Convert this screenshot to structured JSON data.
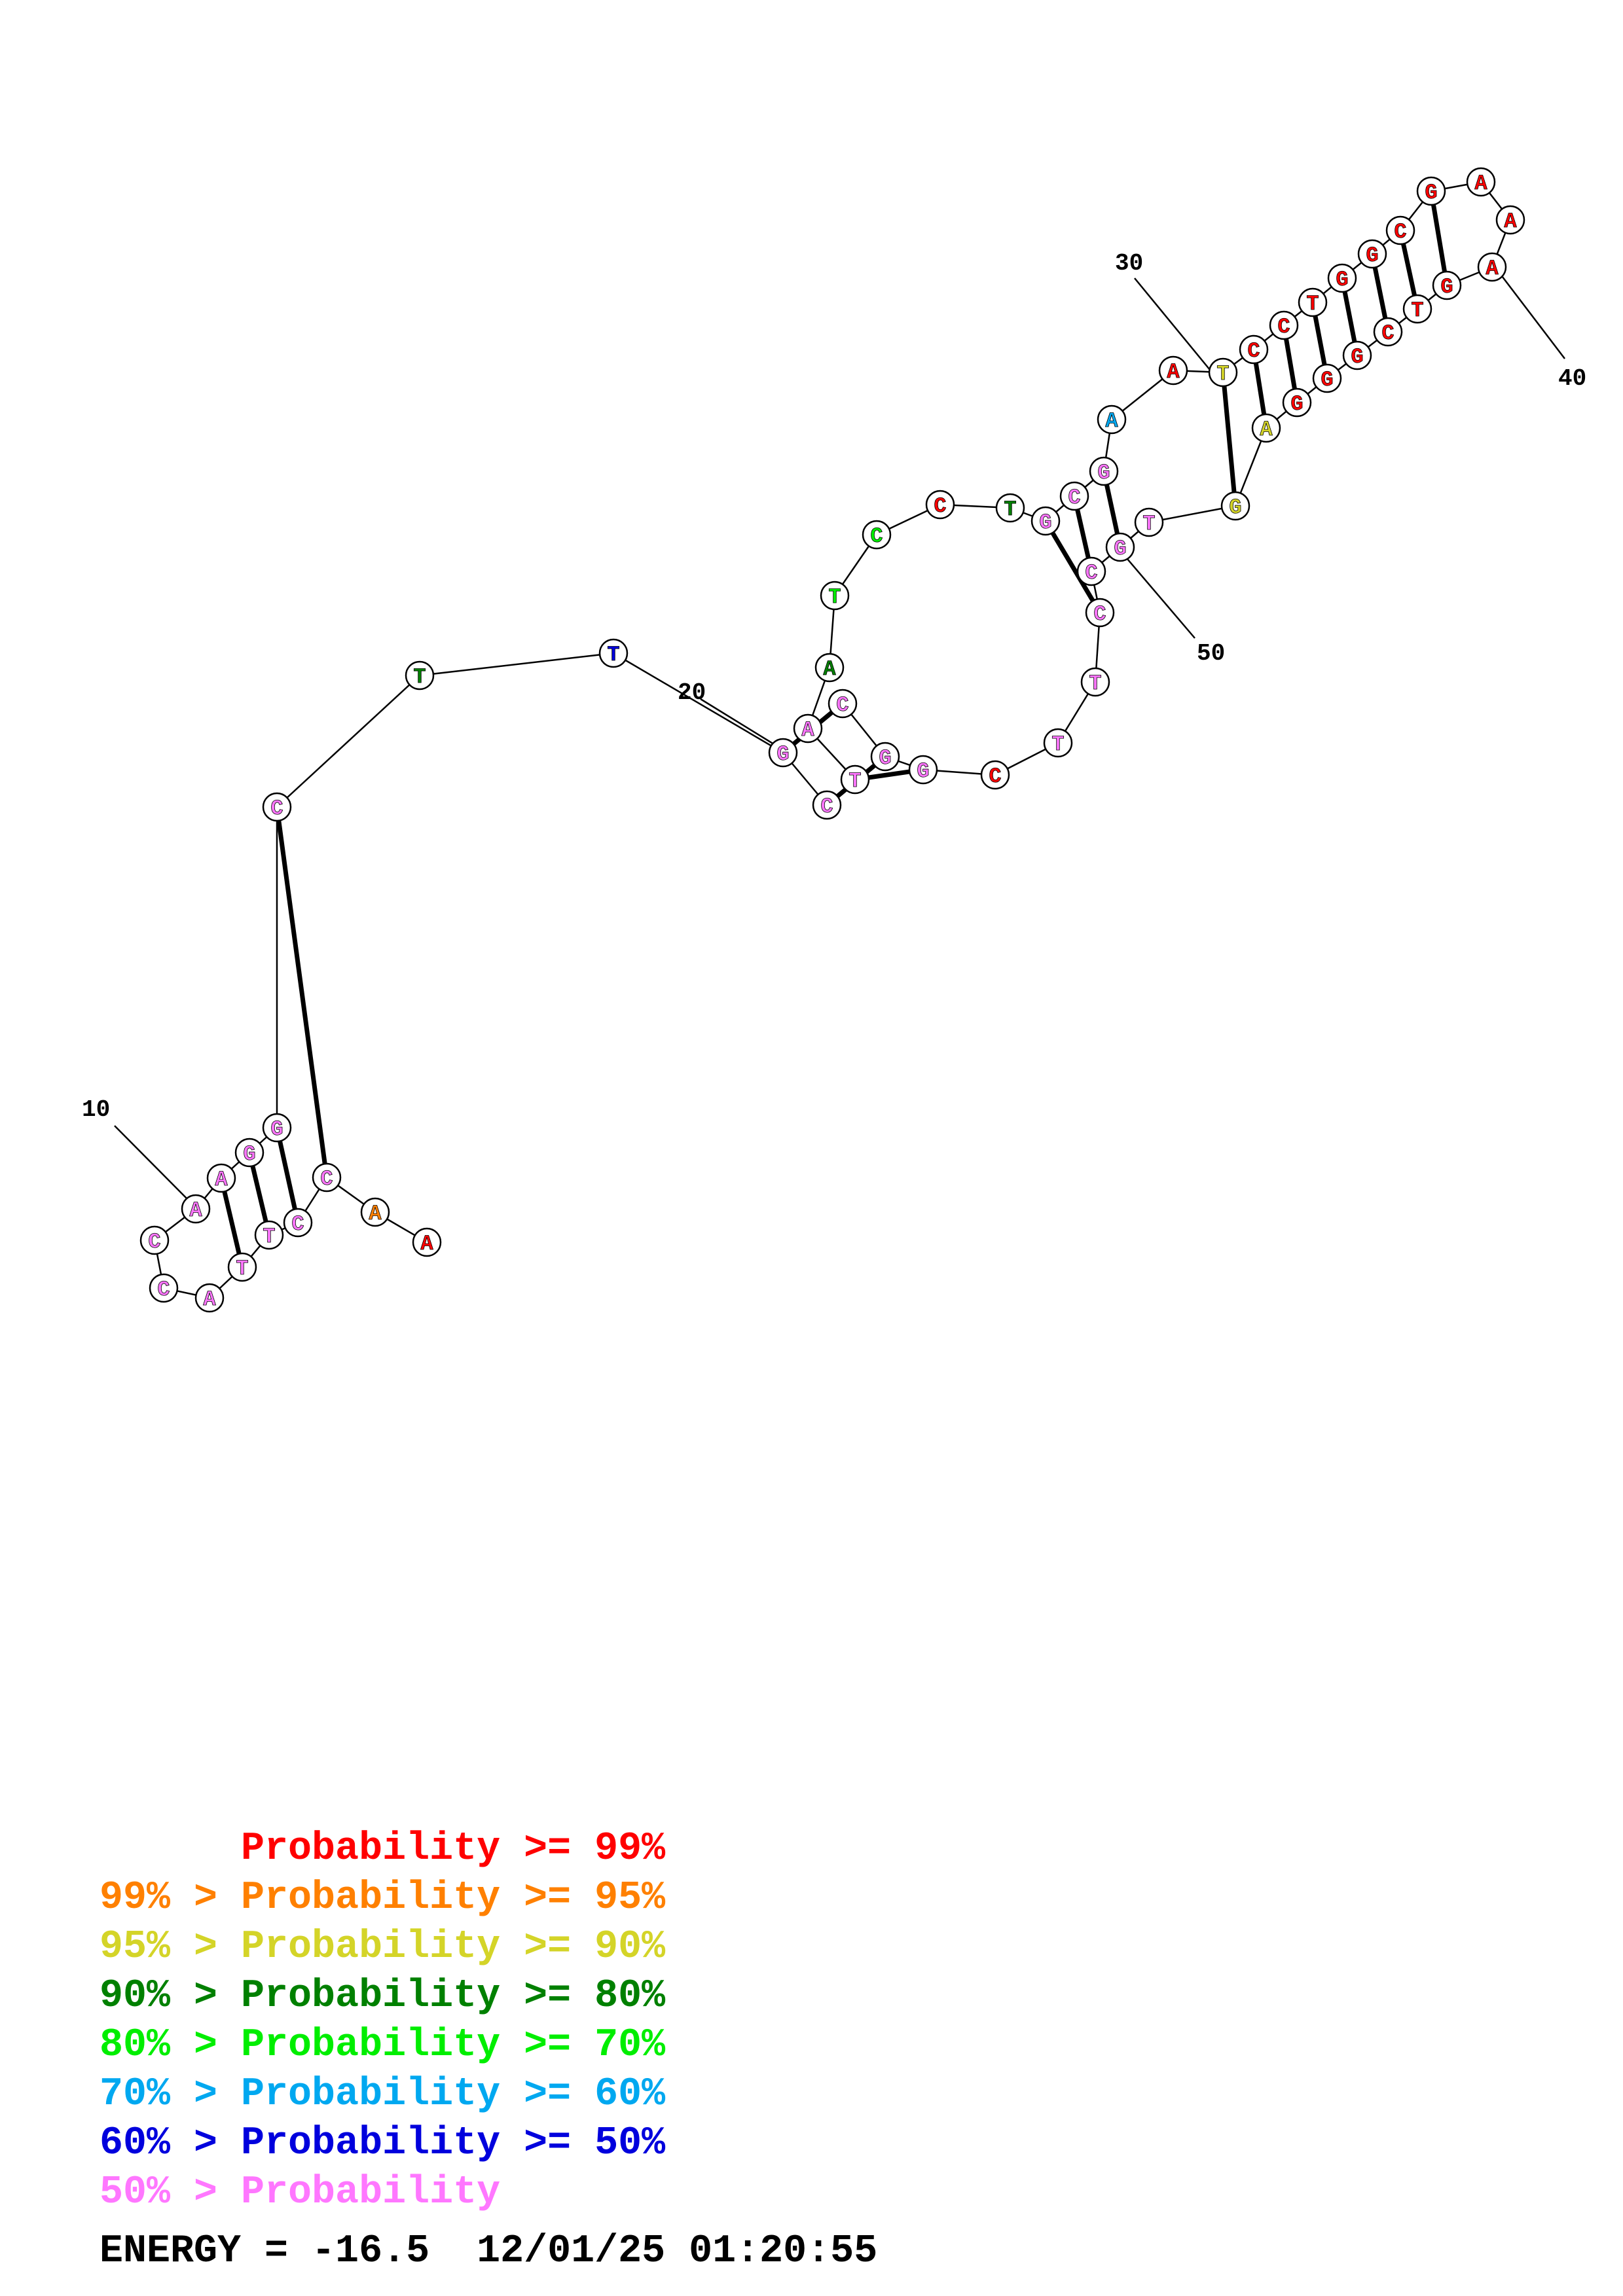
{
  "colors": {
    "red": "#ff0000",
    "orange": "#ff8000",
    "yellow": "#d4d428",
    "darkgreen": "#008000",
    "green": "#00ee00",
    "cyan": "#00a8f0",
    "blue": "#0000dd",
    "pink": "#ff77ff"
  },
  "nucleotides": [
    {
      "base": "A",
      "color": "red"
    },
    {
      "base": "A",
      "color": "orange"
    },
    {
      "base": "C",
      "color": "pink"
    },
    {
      "base": "C",
      "color": "pink"
    },
    {
      "base": "T",
      "color": "pink"
    },
    {
      "base": "T",
      "color": "pink"
    },
    {
      "base": "A",
      "color": "pink"
    },
    {
      "base": "C",
      "color": "pink"
    },
    {
      "base": "C",
      "color": "pink"
    },
    {
      "base": "A",
      "color": "pink"
    },
    {
      "base": "A",
      "color": "pink"
    },
    {
      "base": "G",
      "color": "pink"
    },
    {
      "base": "G",
      "color": "pink"
    },
    {
      "base": "C",
      "color": "pink"
    },
    {
      "base": "T",
      "color": "darkgreen"
    },
    {
      "base": "T",
      "color": "blue"
    },
    {
      "base": "G",
      "color": "pink"
    },
    {
      "base": "C",
      "color": "pink"
    },
    {
      "base": "T",
      "color": "pink"
    },
    {
      "base": "A",
      "color": "pink"
    },
    {
      "base": "A",
      "color": "darkgreen"
    },
    {
      "base": "T",
      "color": "green"
    },
    {
      "base": "C",
      "color": "green"
    },
    {
      "base": "C",
      "color": "red"
    },
    {
      "base": "T",
      "color": "darkgreen"
    },
    {
      "base": "G",
      "color": "pink"
    },
    {
      "base": "C",
      "color": "pink"
    },
    {
      "base": "G",
      "color": "pink"
    },
    {
      "base": "A",
      "color": "cyan"
    },
    {
      "base": "A",
      "color": "red"
    },
    {
      "base": "T",
      "color": "yellow"
    },
    {
      "base": "C",
      "color": "red"
    },
    {
      "base": "C",
      "color": "red"
    },
    {
      "base": "T",
      "color": "red"
    },
    {
      "base": "G",
      "color": "red"
    },
    {
      "base": "G",
      "color": "red"
    },
    {
      "base": "C",
      "color": "red"
    },
    {
      "base": "G",
      "color": "red"
    },
    {
      "base": "A",
      "color": "red"
    },
    {
      "base": "A",
      "color": "red"
    },
    {
      "base": "A",
      "color": "red"
    },
    {
      "base": "G",
      "color": "red"
    },
    {
      "base": "T",
      "color": "red"
    },
    {
      "base": "C",
      "color": "red"
    },
    {
      "base": "G",
      "color": "red"
    },
    {
      "base": "G",
      "color": "red"
    },
    {
      "base": "G",
      "color": "red"
    },
    {
      "base": "A",
      "color": "yellow"
    },
    {
      "base": "G",
      "color": "yellow"
    },
    {
      "base": "T",
      "color": "pink"
    },
    {
      "base": "G",
      "color": "pink"
    },
    {
      "base": "C",
      "color": "pink"
    },
    {
      "base": "C",
      "color": "pink"
    },
    {
      "base": "T",
      "color": "pink"
    },
    {
      "base": "T",
      "color": "pink"
    },
    {
      "base": "C",
      "color": "red"
    },
    {
      "base": "G",
      "color": "pink"
    },
    {
      "base": "G",
      "color": "pink"
    },
    {
      "base": "C",
      "color": "pink"
    }
  ],
  "base_pairs": [
    [
      3,
      14
    ],
    [
      4,
      13
    ],
    [
      5,
      12
    ],
    [
      6,
      11
    ],
    [
      17,
      59
    ],
    [
      18,
      58
    ],
    [
      19,
      57
    ],
    [
      26,
      53
    ],
    [
      27,
      52
    ],
    [
      28,
      51
    ],
    [
      31,
      49
    ],
    [
      32,
      48
    ],
    [
      33,
      47
    ],
    [
      34,
      46
    ],
    [
      35,
      45
    ],
    [
      36,
      44
    ],
    [
      37,
      43
    ],
    [
      38,
      42
    ]
  ],
  "position_labels": [
    "10",
    "20",
    "30",
    "40",
    "50"
  ],
  "legend": [
    {
      "text": "      Probability >= 99%",
      "color": "red"
    },
    {
      "text": "99% > Probability >= 95%",
      "color": "orange"
    },
    {
      "text": "95% > Probability >= 90%",
      "color": "yellow"
    },
    {
      "text": "90% > Probability >= 80%",
      "color": "darkgreen"
    },
    {
      "text": "80% > Probability >= 70%",
      "color": "green"
    },
    {
      "text": "70% > Probability >= 60%",
      "color": "cyan"
    },
    {
      "text": "60% > Probability >= 50%",
      "color": "blue"
    },
    {
      "text": "50% > Probability",
      "color": "pink"
    }
  ],
  "energy_text": "ENERGY = -16.5  12/01/25 01:20:55"
}
